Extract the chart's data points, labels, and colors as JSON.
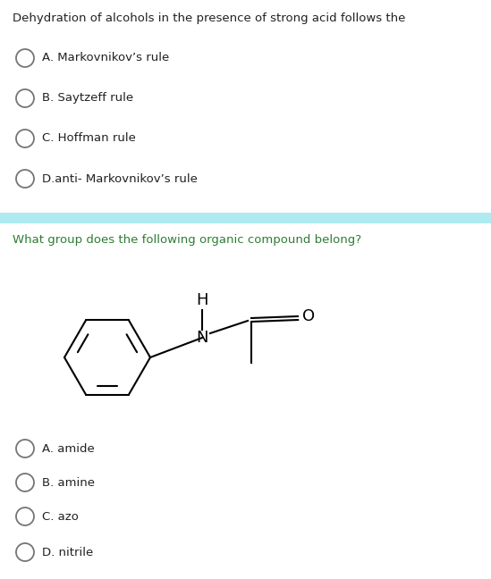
{
  "bg_color": "#ffffff",
  "divider_color": "#aeeaf0",
  "q1_text": "Dehydration of alcohols in the presence of strong acid follows the",
  "q1_text_color": "#212121",
  "q1_options": [
    "A. Markovnikov’s rule",
    "B. Saytzeff rule",
    "C. Hoffman rule",
    "D.anti- Markovnikov’s rule"
  ],
  "q2_text": "What group does the following organic compound belong?",
  "q2_text_color": "#2e7d32",
  "q2_options": [
    "A. amide",
    "B. amine",
    "C. azo",
    "D. nitrile"
  ],
  "option_text_color": "#212121",
  "circle_edge_color": "#757575",
  "figsize": [
    5.49,
    6.48
  ],
  "dpi": 100
}
